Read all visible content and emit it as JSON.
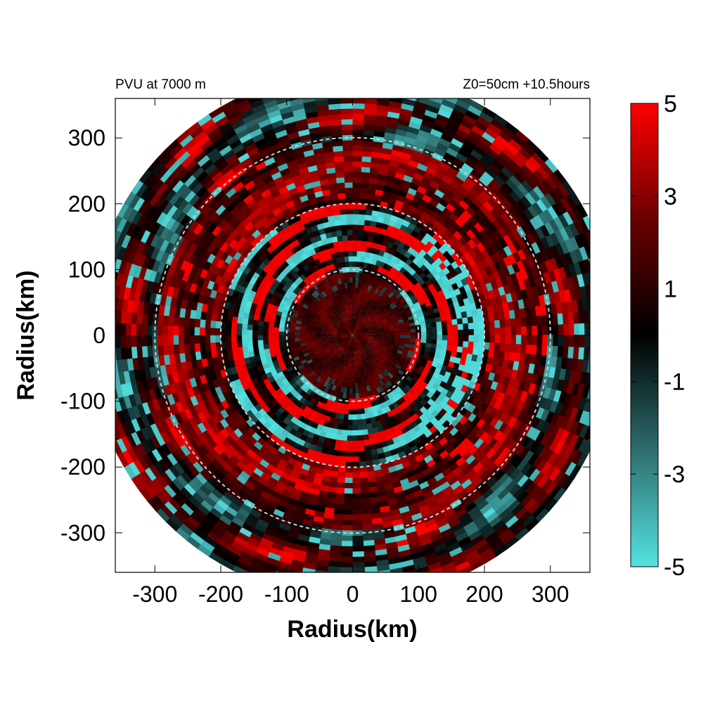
{
  "chart_data": {
    "type": "heatmap",
    "title_left": "PVU at  7000 m",
    "title_right": "Z0=50cm  +10.5hours",
    "xlabel": "Radius(km)",
    "ylabel": "Radius(km)",
    "xlim": [
      -360,
      360
    ],
    "ylim": [
      -360,
      360
    ],
    "x_ticks": [
      "-300",
      "-200",
      "-100",
      "0",
      "100",
      "200",
      "300"
    ],
    "x_tick_values": [
      -300,
      -200,
      -100,
      0,
      100,
      200,
      300
    ],
    "y_ticks": [
      "300",
      "200",
      "100",
      "0",
      "-100",
      "-200",
      "-300"
    ],
    "y_tick_values": [
      300,
      200,
      100,
      0,
      -100,
      -200,
      -300
    ],
    "colorbar": {
      "range": [
        -5,
        5
      ],
      "ticks": [
        "5",
        "3",
        "1",
        "-1",
        "-3",
        "-5"
      ],
      "tick_values": [
        5,
        3,
        1,
        -1,
        -3,
        -5
      ],
      "colors": [
        "#54e2e2",
        "#2e6e6e",
        "#000000",
        "#6a0000",
        "#ff0000"
      ]
    },
    "data_radius_km": 400,
    "reference_circles_km": [
      100,
      200,
      300
    ],
    "reference_circle_style": "dashed light gray",
    "field_description_values": [
      {
        "ring_km": [
          0,
          100
        ],
        "dominant_pvu": 1.5
      },
      {
        "ring_km": [
          100,
          200
        ],
        "mix_pvu": [
          -5,
          5
        ]
      },
      {
        "ring_km": [
          200,
          300
        ],
        "dominant_pvu": 2.5
      },
      {
        "ring_km": [
          300,
          400
        ],
        "mix_pvu": [
          -3,
          3
        ]
      }
    ]
  }
}
